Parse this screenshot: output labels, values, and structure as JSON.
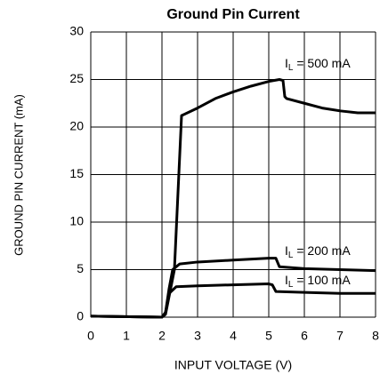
{
  "chart_data": {
    "type": "line",
    "title": "Ground Pin Current",
    "xlabel": "INPUT VOLTAGE (V)",
    "ylabel": "GROUND PIN CURRENT (mA)",
    "xlim": [
      0,
      8
    ],
    "ylim": [
      0,
      30
    ],
    "xticks": [
      0,
      1,
      2,
      3,
      4,
      5,
      6,
      7,
      8
    ],
    "yticks": [
      0,
      5,
      10,
      15,
      20,
      25,
      30
    ],
    "grid": true,
    "series": [
      {
        "label": [
          "I",
          "L",
          " = 500 mA"
        ],
        "color": "#000000",
        "x": [
          0,
          2,
          2.1,
          2.35,
          2.55,
          3,
          3.5,
          4,
          4.5,
          5,
          5.3,
          5.4,
          5.45,
          5.5,
          6,
          6.5,
          7,
          7.5,
          8
        ],
        "values": [
          0.1,
          0,
          0.3,
          5,
          21.2,
          22,
          23,
          23.7,
          24.3,
          24.8,
          25,
          24.9,
          23.2,
          23,
          22.5,
          22,
          21.7,
          21.5,
          21.5
        ]
      },
      {
        "label": [
          "I",
          "L",
          " = 200 mA"
        ],
        "color": "#000000",
        "x": [
          0,
          2,
          2.1,
          2.2,
          2.3,
          2.5,
          3,
          4,
          5,
          5.2,
          5.3,
          6,
          7,
          8
        ],
        "values": [
          0.1,
          0,
          0.5,
          3,
          5,
          5.6,
          5.8,
          6,
          6.2,
          6.2,
          5.3,
          5.1,
          5,
          4.9
        ]
      },
      {
        "label": [
          "I",
          "L",
          " = 100 mA"
        ],
        "color": "#000000",
        "x": [
          0,
          2,
          2.1,
          2.2,
          2.4,
          3,
          4,
          5,
          5.1,
          5.2,
          6,
          7,
          8
        ],
        "values": [
          0.1,
          0,
          0.5,
          2.5,
          3.2,
          3.3,
          3.4,
          3.5,
          3.4,
          2.7,
          2.6,
          2.5,
          2.5
        ]
      }
    ]
  }
}
